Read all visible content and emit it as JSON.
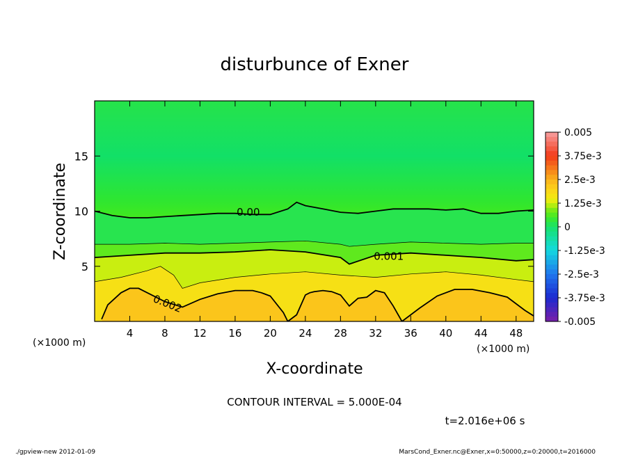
{
  "chart_data": {
    "type": "heatmap",
    "title": "disturbunce of Exner",
    "xlabel": "X-coordinate",
    "ylabel": "Z-coordinate",
    "x_unit": "(×1000 m)",
    "xlim": [
      0,
      50
    ],
    "ylim": [
      0,
      20
    ],
    "x_ticks": [
      4,
      8,
      12,
      16,
      20,
      24,
      28,
      32,
      36,
      40,
      44,
      48
    ],
    "y_ticks": [
      5,
      10,
      15
    ],
    "color_range": [
      -0.005,
      0.005
    ],
    "colorbar_ticks": [
      {
        "value": 0.005,
        "label": "0.005"
      },
      {
        "value": 0.00375,
        "label": "3.75e-3"
      },
      {
        "value": 0.0025,
        "label": "2.5e-3"
      },
      {
        "value": 0.00125,
        "label": "1.25e-3"
      },
      {
        "value": 0,
        "label": "0"
      },
      {
        "value": -0.00125,
        "label": "-1.25e-3"
      },
      {
        "value": -0.0025,
        "label": "-2.5e-3"
      },
      {
        "value": -0.00375,
        "label": "-3.75e-3"
      },
      {
        "value": -0.005,
        "label": "-0.005"
      }
    ],
    "contours": [
      {
        "level": 0.0,
        "label": "0.00",
        "bold": true,
        "x": [
          0,
          2,
          4,
          6,
          8,
          10,
          12,
          14,
          16,
          18,
          20,
          22,
          23,
          24,
          26,
          28,
          30,
          32,
          34,
          36,
          38,
          40,
          42,
          44,
          46,
          48,
          50
        ],
        "z": [
          10.0,
          9.6,
          9.4,
          9.4,
          9.5,
          9.6,
          9.7,
          9.8,
          9.8,
          9.7,
          9.7,
          10.2,
          10.8,
          10.5,
          10.2,
          9.9,
          9.8,
          10.0,
          10.2,
          10.2,
          10.2,
          10.1,
          10.2,
          9.8,
          9.8,
          10.0,
          10.1
        ]
      },
      {
        "level": 0.0005,
        "label": "",
        "bold": false,
        "x": [
          0,
          4,
          8,
          12,
          16,
          20,
          24,
          28,
          29,
          32,
          36,
          40,
          44,
          48,
          50
        ],
        "z": [
          7.0,
          7.0,
          7.1,
          7.0,
          7.1,
          7.2,
          7.3,
          7.0,
          6.8,
          7.0,
          7.2,
          7.1,
          7.0,
          7.1,
          7.1
        ]
      },
      {
        "level": 0.001,
        "label": "0.001",
        "bold": true,
        "x": [
          0,
          4,
          8,
          12,
          16,
          20,
          24,
          28,
          29,
          32,
          36,
          40,
          44,
          48,
          50
        ],
        "z": [
          5.8,
          6.0,
          6.2,
          6.2,
          6.3,
          6.5,
          6.3,
          5.8,
          5.2,
          6.0,
          6.2,
          6.0,
          5.8,
          5.5,
          5.6
        ]
      },
      {
        "level": 0.0015,
        "label": "",
        "bold": false,
        "x": [
          0,
          3,
          6,
          7.5,
          9,
          10,
          12,
          16,
          20,
          24,
          28,
          32,
          36,
          40,
          44,
          48,
          50
        ],
        "z": [
          3.6,
          4.0,
          4.6,
          5.0,
          4.2,
          3.0,
          3.5,
          4.0,
          4.3,
          4.5,
          4.2,
          4.0,
          4.3,
          4.5,
          4.2,
          3.8,
          3.6
        ]
      },
      {
        "level": 0.002,
        "label": "0.002",
        "bold": true,
        "x": [
          0.8,
          1.5,
          3,
          4,
          5,
          6,
          8,
          10,
          12,
          14,
          16,
          18,
          19,
          20,
          21.5,
          22,
          23,
          24,
          24.5,
          25,
          26,
          27,
          28,
          29,
          30,
          31,
          32,
          33,
          34,
          35,
          37,
          39,
          41,
          43,
          45,
          47,
          49,
          50
        ],
        "z": [
          0.2,
          1.5,
          2.6,
          3.0,
          3.0,
          2.6,
          1.8,
          1.3,
          2.0,
          2.5,
          2.8,
          2.8,
          2.6,
          2.3,
          0.8,
          0.0,
          0.6,
          2.4,
          2.6,
          2.7,
          2.8,
          2.7,
          2.4,
          1.4,
          2.1,
          2.2,
          2.8,
          2.6,
          1.4,
          0.0,
          1.2,
          2.3,
          2.9,
          2.9,
          2.6,
          2.2,
          1.0,
          0.5
        ]
      }
    ],
    "annotations": {
      "contour_interval": "CONTOUR INTERVAL = 5.000E-04",
      "time": "t=2.016e+06 s"
    }
  },
  "footer": {
    "left": "./gpview-new   2012-01-09",
    "right": "MarsCond_Exner.nc@Exner,x=0:50000,z=0:20000,t=2016000"
  }
}
